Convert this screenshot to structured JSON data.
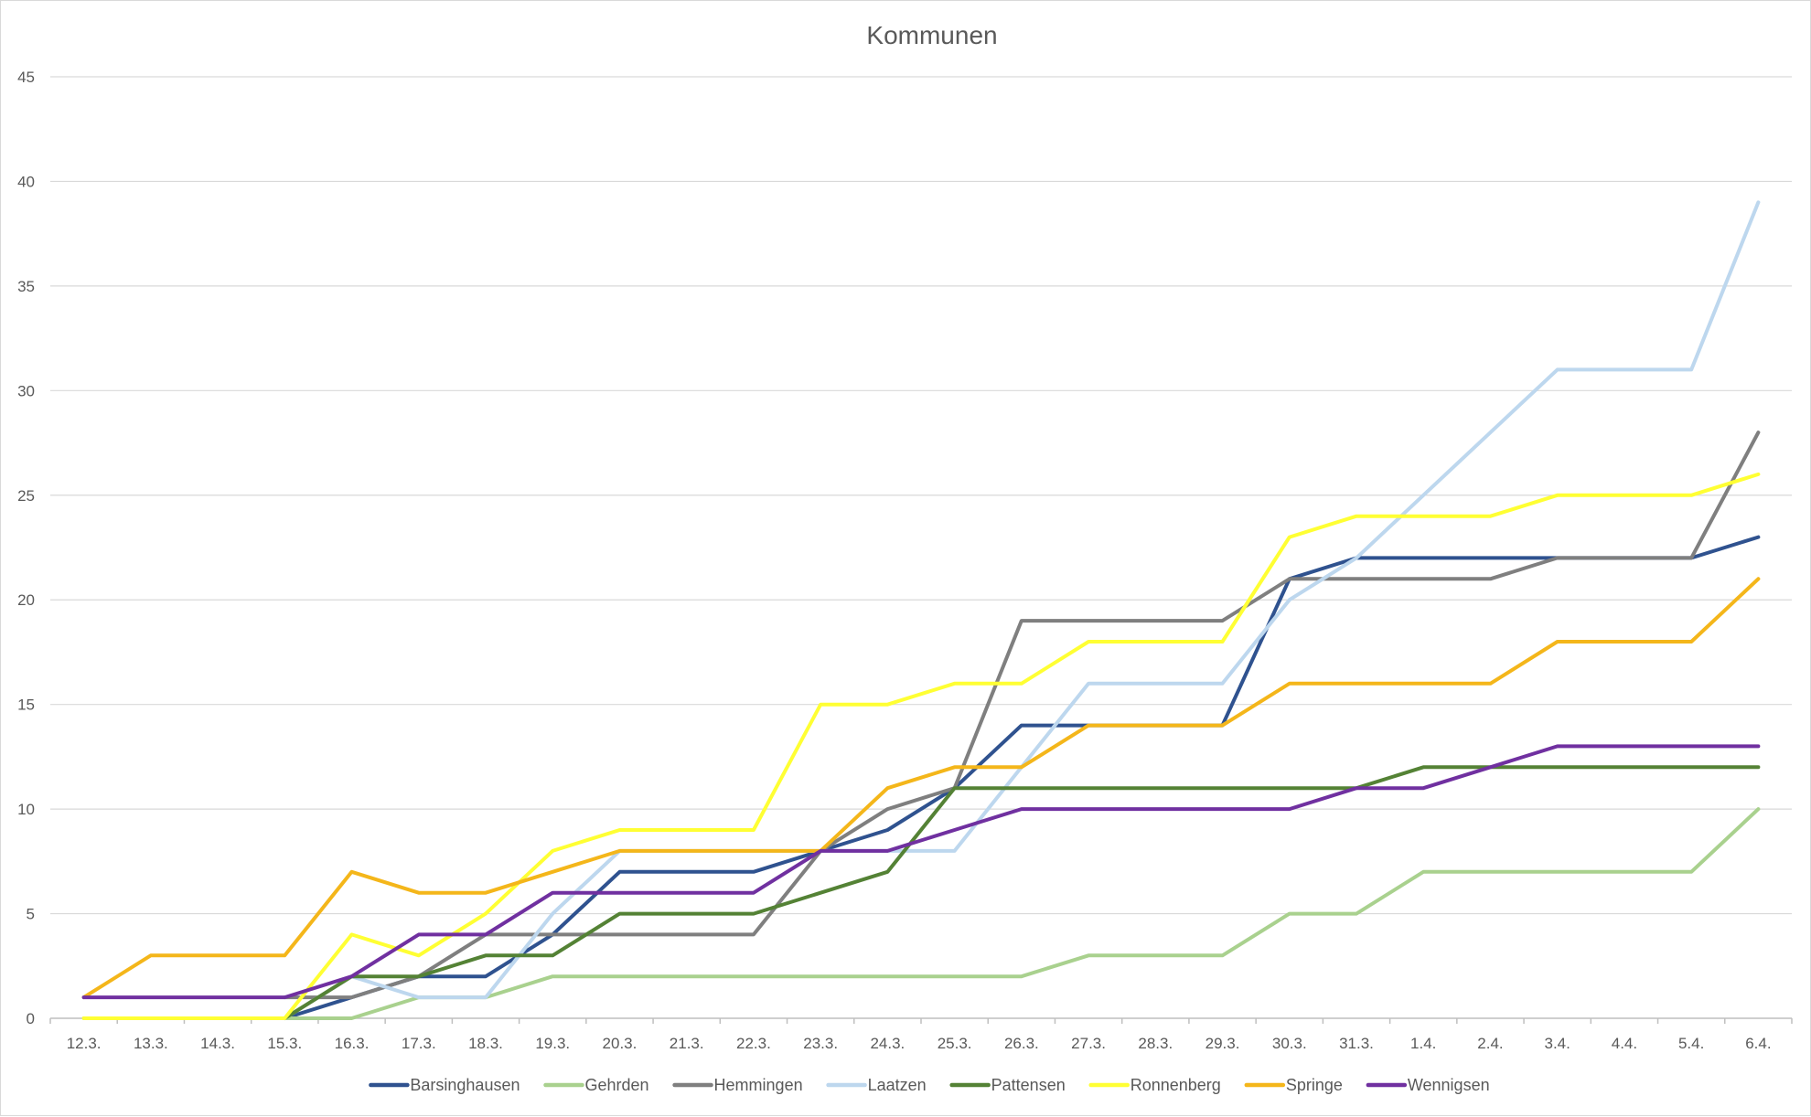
{
  "chart_data": {
    "type": "line",
    "title": "Kommunen",
    "xlabel": "",
    "ylabel": "",
    "ylim": [
      0,
      45
    ],
    "yticks": [
      0,
      5,
      10,
      15,
      20,
      25,
      30,
      35,
      40,
      45
    ],
    "grid": true,
    "legend_position": "bottom",
    "categories": [
      "12.3.",
      "13.3.",
      "14.3.",
      "15.3.",
      "16.3.",
      "17.3.",
      "18.3.",
      "19.3.",
      "20.3.",
      "21.3.",
      "22.3.",
      "23.3.",
      "24.3.",
      "25.3.",
      "26.3.",
      "27.3.",
      "28.3.",
      "29.3.",
      "30.3.",
      "31.3.",
      "1.4.",
      "2.4.",
      "3.4.",
      "4.4.",
      "5.4.",
      "6.4."
    ],
    "series": [
      {
        "name": "Barsinghausen",
        "color": "#2f528f",
        "values": [
          null,
          null,
          null,
          0,
          1,
          2,
          2,
          4,
          7,
          7,
          7,
          8,
          9,
          11,
          14,
          14,
          14,
          14,
          21,
          22,
          22,
          22,
          22,
          22,
          22,
          23
        ]
      },
      {
        "name": "Gehrden",
        "color": "#a9d18e",
        "values": [
          0,
          0,
          0,
          0,
          0,
          1,
          1,
          2,
          2,
          2,
          2,
          2,
          2,
          2,
          2,
          3,
          3,
          3,
          5,
          5,
          7,
          7,
          7,
          7,
          7,
          10
        ]
      },
      {
        "name": "Hemmingen",
        "color": "#7f7f7f",
        "values": [
          null,
          null,
          null,
          1,
          1,
          2,
          4,
          4,
          4,
          4,
          4,
          8,
          10,
          11,
          19,
          19,
          19,
          19,
          21,
          21,
          21,
          21,
          22,
          22,
          22,
          28
        ]
      },
      {
        "name": "Laatzen",
        "color": "#bdd7ee",
        "values": [
          null,
          null,
          null,
          0,
          2,
          1,
          1,
          5,
          8,
          8,
          8,
          8,
          8,
          8,
          12,
          16,
          16,
          16,
          20,
          22,
          25,
          28,
          31,
          31,
          31,
          39
        ]
      },
      {
        "name": "Pattensen",
        "color": "#548235",
        "values": [
          null,
          null,
          null,
          0,
          2,
          2,
          3,
          3,
          5,
          5,
          5,
          6,
          7,
          11,
          11,
          11,
          11,
          11,
          11,
          11,
          12,
          12,
          12,
          12,
          12,
          12
        ]
      },
      {
        "name": "Ronnenberg",
        "color": "#ffff33",
        "values": [
          0,
          0,
          0,
          0,
          4,
          3,
          5,
          8,
          9,
          9,
          9,
          15,
          15,
          16,
          16,
          18,
          18,
          18,
          23,
          24,
          24,
          24,
          25,
          25,
          25,
          26
        ]
      },
      {
        "name": "Springe",
        "color": "#f4b61a",
        "values": [
          1,
          3,
          3,
          3,
          7,
          6,
          6,
          7,
          8,
          8,
          8,
          8,
          11,
          12,
          12,
          14,
          14,
          14,
          16,
          16,
          16,
          16,
          18,
          18,
          18,
          21
        ]
      },
      {
        "name": "Wennigsen",
        "color": "#7030a0",
        "values": [
          1,
          1,
          1,
          1,
          2,
          4,
          4,
          6,
          6,
          6,
          6,
          8,
          8,
          9,
          10,
          10,
          10,
          10,
          10,
          11,
          11,
          12,
          13,
          13,
          13,
          13
        ]
      }
    ]
  }
}
